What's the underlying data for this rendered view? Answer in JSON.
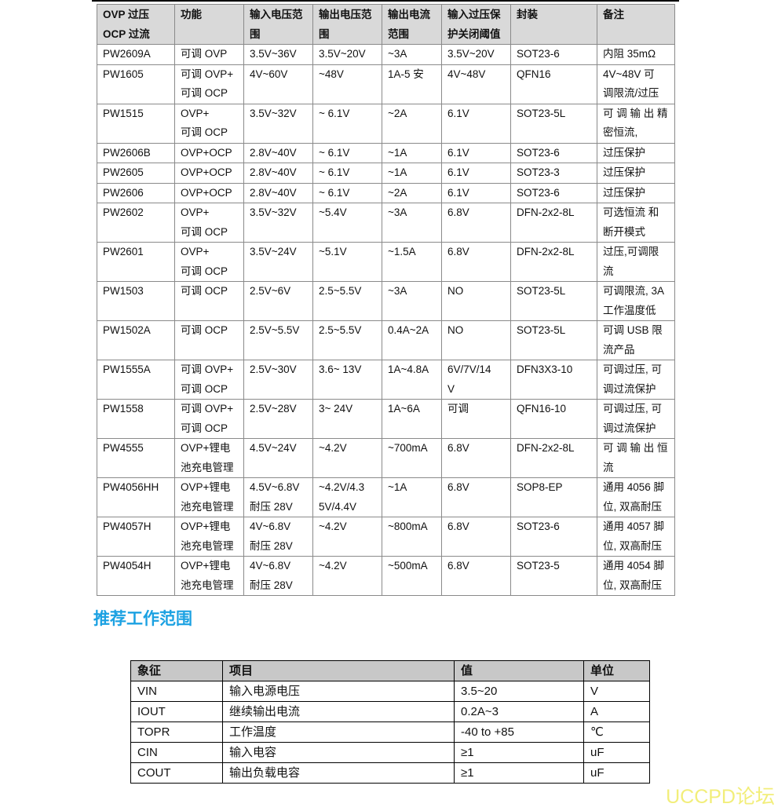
{
  "table1": {
    "headers": [
      "OVP 过压\nOCP 过流",
      "功能",
      "输入电压范\n围",
      "输出电压范\n围",
      "输出电流\n范围",
      "输入过压保\n护关闭阈值",
      "封装",
      "备注"
    ],
    "rows": [
      [
        "PW2609A",
        "可调 OVP",
        "3.5V~36V",
        "3.5V~20V",
        "~3A",
        "3.5V~20V",
        "SOT23-6",
        "内阻 35mΩ"
      ],
      [
        "PW1605",
        "可调 OVP+\n可调 OCP",
        "4V~60V",
        "~48V",
        "1A-5 安",
        "4V~48V",
        "QFN16",
        "4V~48V  可\n调限流/过压"
      ],
      [
        "PW1515",
        "OVP+\n可调 OCP",
        "3.5V~32V",
        "~ 6.1V",
        "~2A",
        "6.1V",
        "SOT23-5L",
        "可 调 输 出 精\n密恒流,"
      ],
      [
        "PW2606B",
        "OVP+OCP",
        "2.8V~40V",
        "~ 6.1V",
        "~1A",
        "6.1V",
        "SOT23-6",
        "过压保护"
      ],
      [
        "PW2605",
        "OVP+OCP",
        "2.8V~40V",
        "~ 6.1V",
        "~1A",
        "6.1V",
        "SOT23-3",
        "过压保护"
      ],
      [
        "PW2606",
        "OVP+OCP",
        "2.8V~40V",
        "~ 6.1V",
        "~2A",
        "6.1V",
        "SOT23-6",
        "过压保护"
      ],
      [
        "PW2602",
        "OVP+\n可调 OCP",
        "3.5V~32V",
        "~5.4V",
        "~3A",
        "6.8V",
        "DFN-2x2-8L",
        "可选恒流  和\n断开模式"
      ],
      [
        "PW2601",
        "OVP+\n可调 OCP",
        "3.5V~24V",
        "~5.1V",
        "~1.5A",
        "6.8V",
        "DFN-2x2-8L",
        "过压,可调限\n流"
      ],
      [
        "PW1503",
        "可调 OCP",
        "2.5V~6V",
        "2.5~5.5V",
        "~3A",
        "NO",
        "SOT23-5L",
        "可调限流, 3A\n工作温度低"
      ],
      [
        "PW1502A",
        "可调 OCP",
        "2.5V~5.5V",
        "2.5~5.5V",
        "0.4A~2A",
        "NO",
        "SOT23-5L",
        "可调  USB  限\n流产品"
      ],
      [
        "PW1555A",
        "可调 OVP+\n可调 OCP",
        "2.5V~30V",
        "3.6~ 13V",
        "1A~4.8A",
        "6V/7V/14\nV",
        "DFN3X3-10",
        "可调过压, 可\n调过流保护"
      ],
      [
        "PW1558",
        "可调 OVP+\n可调 OCP",
        "2.5V~28V",
        "3~ 24V",
        "1A~6A",
        "可调",
        "QFN16-10",
        "可调过压, 可\n调过流保护"
      ],
      [
        "PW4555",
        "OVP+锂电\n池充电管理",
        "4.5V~24V",
        "~4.2V",
        "~700mA",
        "6.8V",
        "DFN-2x2-8L",
        "可 调 输 出 恒\n流"
      ],
      [
        "PW4056HH",
        "OVP+锂电\n池充电管理",
        "4.5V~6.8V\n耐压 28V",
        "~4.2V/4.3\n5V/4.4V",
        "~1A",
        "6.8V",
        "SOP8-EP",
        "通用 4056 脚\n位, 双高耐压"
      ],
      [
        "PW4057H",
        "OVP+锂电\n池充电管理",
        "4V~6.8V\n耐压 28V",
        "~4.2V",
        "~800mA",
        "6.8V",
        "SOT23-6",
        "通用 4057 脚\n位, 双高耐压"
      ],
      [
        "PW4054H",
        "OVP+锂电\n池充电管理",
        "4V~6.8V\n耐压 28V",
        "~4.2V",
        "~500mA",
        "6.8V",
        "SOT23-5",
        "通用 4054 脚\n位, 双高耐压"
      ]
    ]
  },
  "section_title": "推荐工作范围",
  "table2": {
    "headers": [
      "象征",
      "项目",
      "值",
      "单位"
    ],
    "rows": [
      [
        "VIN",
        "输入电源电压",
        "3.5~20",
        "V"
      ],
      [
        "IOUT",
        "继续输出电流",
        "0.2A~3",
        "A"
      ],
      [
        "TOPR",
        "工作温度",
        "-40 to +85",
        "℃"
      ],
      [
        "CIN",
        "输入电容",
        "≥1",
        "uF"
      ],
      [
        "COUT",
        "输出负载电容",
        "≥1",
        "uF"
      ]
    ]
  },
  "watermark": "UCCPD论坛"
}
